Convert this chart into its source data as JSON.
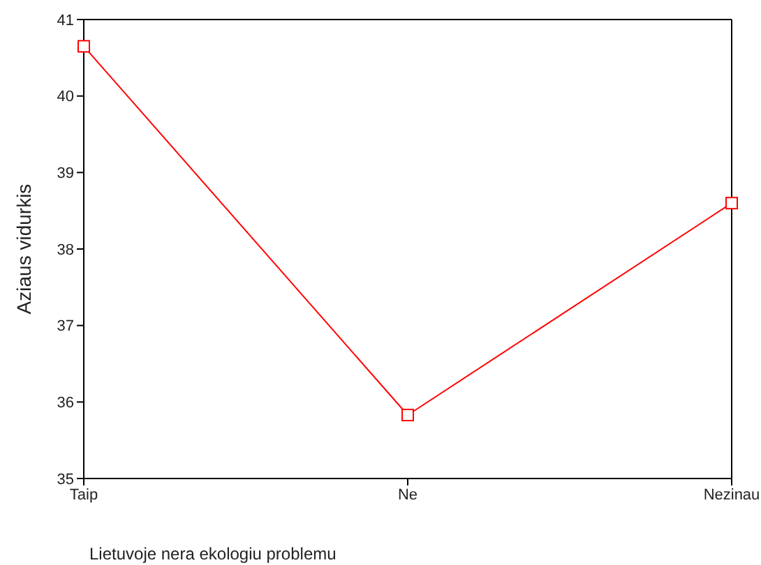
{
  "chart_data": {
    "type": "line",
    "xlabel": "Lietuvoje nera ekologiu problemu",
    "ylabel": "Aziaus vidurkis",
    "categories": [
      "Taip",
      "Ne",
      "Nezinau"
    ],
    "series": [
      {
        "color": "#ff0000",
        "values": [
          40.65,
          35.83,
          38.6
        ]
      }
    ],
    "ylim": [
      35,
      41
    ],
    "yticks": [
      35,
      36,
      37,
      38,
      39,
      40,
      41
    ],
    "grid": false,
    "legend": false,
    "marker": "square",
    "line_style": "solid"
  }
}
